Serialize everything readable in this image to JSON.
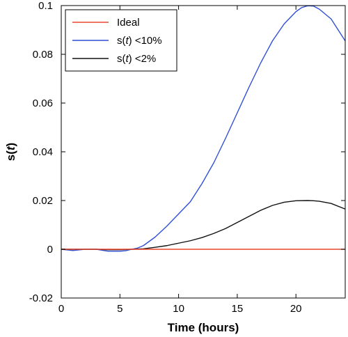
{
  "chart_data": {
    "type": "line",
    "xlabel": "Time (hours)",
    "ylabel": "s(t)",
    "xlim": [
      0,
      24.2
    ],
    "ylim": [
      -0.02,
      0.1
    ],
    "x_ticks": [
      0,
      5,
      10,
      15,
      20
    ],
    "x_tick_labels": [
      "0",
      "5",
      "10",
      "15",
      "20"
    ],
    "y_ticks": [
      -0.02,
      0,
      0.02,
      0.04,
      0.06,
      0.08,
      0.1
    ],
    "y_tick_labels": [
      "-0.02",
      "0",
      "0.02",
      "0.04",
      "0.06",
      "0.08",
      "0.1"
    ],
    "grid": false,
    "legend_position": "top-left",
    "series": [
      {
        "name": "Ideal",
        "name_parts": [
          "s(",
          "",
          ")"
        ],
        "color": "#e8452c",
        "x": [
          0,
          24.2
        ],
        "y": [
          0,
          0
        ]
      },
      {
        "name": "s(t) <10%",
        "name_parts": [
          "s(",
          "t",
          ") <10%"
        ],
        "color": "#2f4fd6",
        "x": [
          0,
          1,
          2,
          3,
          4,
          5,
          5.5,
          6,
          6.5,
          7,
          8,
          9,
          10,
          11,
          12,
          13,
          14,
          15,
          16,
          17,
          18,
          19,
          20,
          20.5,
          21,
          21.5,
          22,
          23,
          24.2
        ],
        "y": [
          0,
          -0.0005,
          0,
          0,
          -0.0008,
          -0.0008,
          -0.0006,
          0,
          0.0005,
          0.0015,
          0.005,
          0.0095,
          0.0145,
          0.0195,
          0.027,
          0.0355,
          0.0455,
          0.056,
          0.0665,
          0.0765,
          0.0855,
          0.0925,
          0.0975,
          0.0992,
          0.0999,
          0.0998,
          0.0985,
          0.0945,
          0.0855
        ]
      },
      {
        "name": "s(t) <2%",
        "name_parts": [
          "s(",
          "t",
          ") <2%"
        ],
        "color": "#111111",
        "x": [
          0,
          2,
          3,
          4,
          5,
          6,
          7,
          8,
          9,
          10,
          11,
          12,
          13,
          14,
          15,
          16,
          17,
          18,
          19,
          20,
          21,
          21.5,
          22,
          23,
          24.2
        ],
        "y": [
          0,
          0,
          0,
          -0.0002,
          -0.0002,
          0,
          0.0002,
          0.0008,
          0.0015,
          0.0025,
          0.0035,
          0.0048,
          0.0065,
          0.0085,
          0.011,
          0.0135,
          0.016,
          0.018,
          0.0193,
          0.0199,
          0.02,
          0.0199,
          0.0197,
          0.0188,
          0.0165
        ]
      }
    ]
  }
}
